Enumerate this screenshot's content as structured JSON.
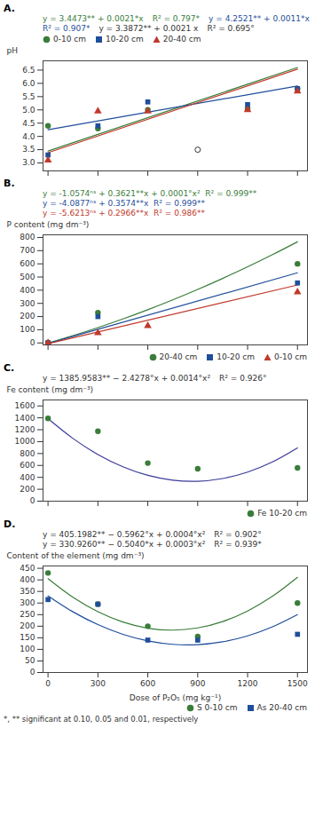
{
  "chart_data": [
    {
      "type": "scatter",
      "title": "A.",
      "ylabel": "pH",
      "xlim": [
        -30,
        1560
      ],
      "xticks": [
        0,
        300,
        600,
        900,
        1200,
        1500
      ],
      "ylim": [
        2.7,
        6.85
      ],
      "yticks": [
        {
          "value": 3,
          "label": "3.0"
        },
        3.5,
        {
          "value": 4,
          "label": "4.0"
        },
        4.5,
        {
          "value": 5,
          "label": "5.0"
        },
        5.5,
        {
          "value": 6,
          "label": "6.0"
        },
        6.5
      ],
      "tick_labels": "y",
      "legend": "upper left",
      "series": [
        {
          "name": "0-10 cm",
          "color": "#3a7d3a",
          "marker": "o",
          "x": [
            0,
            300,
            600,
            1200,
            1500
          ],
          "values": [
            4.4,
            4.3,
            5.0,
            5.05,
            5.8
          ],
          "fit": {
            "x": [
              0,
              1500
            ],
            "values": [
              3.4473,
              6.5973
            ]
          }
        },
        {
          "name": "10-20 cm",
          "color": "#1f4e9a",
          "marker": "s",
          "x": [
            0,
            300,
            600,
            1200,
            1500
          ],
          "values": [
            3.3,
            4.4,
            5.3,
            5.2,
            5.8
          ],
          "fit": {
            "x": [
              0,
              1500
            ],
            "values": [
              4.2521,
              5.9021
            ]
          }
        },
        {
          "name": "20-40 cm",
          "color": "#c0392b",
          "marker": "^",
          "x": [
            0,
            300,
            600,
            1200,
            1500
          ],
          "values": [
            3.1,
            4.95,
            4.95,
            5.0,
            5.7
          ],
          "fit": {
            "x": [
              0,
              1500
            ],
            "values": [
              3.3872,
              6.5372
            ]
          }
        }
      ],
      "outliers": {
        "x": [
          900
        ],
        "values": [
          3.5
        ]
      },
      "annotations": [
        {
          "text": "y = 3.4473** + 0.0021*x",
          "color": "#3a7d3a"
        },
        {
          "text": "R² = 0.797*",
          "color": "#3a7d3a"
        },
        {
          "text": "y = 4.2521** + 0.0011*x",
          "color": "#1f4e9a"
        },
        {
          "text": "R² = 0.907*",
          "color": "#1f4e9a"
        },
        {
          "text": "y = 3.3872** + 0.0021 x"
        },
        {
          "text": "R² = 0.695°"
        }
      ]
    },
    {
      "type": "scatter",
      "title": "B.",
      "ylabel": "P content (mg dm⁻³)",
      "xlim": [
        -30,
        1560
      ],
      "xticks": [
        0,
        300,
        600,
        900,
        1200,
        1500
      ],
      "ylim": [
        -15,
        820
      ],
      "yticks": [
        0,
        100,
        200,
        300,
        400,
        500,
        600,
        700,
        800
      ],
      "tick_labels": "y",
      "legend": "lower right",
      "series": [
        {
          "name": "20-40 cm",
          "color": "#3a7d3a",
          "marker": "o",
          "x": [
            0,
            300,
            1500
          ],
          "values": [
            2,
            230,
            600
          ],
          "fit": {
            "x": [
              0,
              150,
              300,
              450,
              600,
              750,
              900,
              1050,
              1200,
              1350,
              1500
            ],
            "values": [
              -1.0574,
              55.5076,
              116.5726,
              182.1376,
              252.2026,
              326.7676,
              405.8326,
              489.3976,
              577.4626,
              670.0276,
              767.0926
            ]
          }
        },
        {
          "name": "10-20 cm",
          "color": "#1f4e9a",
          "marker": "s",
          "x": [
            0,
            300,
            1500
          ],
          "values": [
            1,
            200,
            455
          ],
          "fit": {
            "x": [
              0,
              1500
            ],
            "values": [
              -4.0877,
              532.0123
            ]
          }
        },
        {
          "name": "0-10 cm",
          "color": "#c0392b",
          "marker": "^",
          "x": [
            0,
            300,
            600,
            1500
          ],
          "values": [
            0,
            75,
            130,
            385
          ],
          "fit": {
            "x": [
              0,
              1500
            ],
            "values": [
              -5.6213,
              439.2787
            ]
          }
        }
      ],
      "annotations": [
        {
          "text": "y = -1.0574ⁿˢ + 0.3621**x + 0.0001°x²  R² = 0.999**",
          "color": "#3a7d3a"
        },
        {
          "text": "y = -4.0877ⁿˢ + 0.3574**x  R² = 0.999**",
          "color": "#1f4e9a"
        },
        {
          "text": "y = -5.6213ⁿˢ + 0.2966**x  R² = 0.986**",
          "color": "#c0392b"
        }
      ]
    },
    {
      "type": "scatter",
      "title": "C.",
      "ylabel": "Fe content (mg dm⁻³)",
      "xlim": [
        -30,
        1560
      ],
      "xticks": [
        0,
        300,
        600,
        900,
        1200,
        1500
      ],
      "ylim": [
        0,
        1700
      ],
      "yticks": [
        0,
        200,
        400,
        600,
        800,
        1000,
        1200,
        1400,
        1600
      ],
      "tick_labels": "y",
      "legend": "lower right",
      "series": [
        {
          "name": "Fe 10-20 cm",
          "color": "#3a7d3a",
          "marker": "o",
          "x": [
            0,
            300,
            600,
            900,
            1500
          ],
          "values": [
            1390,
            1175,
            640,
            545,
            560
          ],
          "fit": {
            "color": "#3a3a9a",
            "x": [
              0,
              150,
              300,
              450,
              600,
              750,
              900,
              1050,
              1200,
              1350,
              1500
            ],
            "values": [
              1385.9583,
              1053.2883,
              783.6183,
              576.9483,
              433.2783,
              352.6083,
              334.9383,
              380.2683,
              488.5983,
              659.9283,
              894.2583
            ]
          }
        }
      ],
      "annotations": [
        {
          "text": "y = 1385.9583** − 2.4278°x + 0.0014°x²"
        },
        {
          "text": "R² = 0.926°"
        }
      ]
    },
    {
      "type": "scatter",
      "title": "D.",
      "ylabel": "Content of the element (mg dm⁻³)",
      "xlabel": "Dose of P₂O₅ (mg kg⁻¹)",
      "xlim": [
        -30,
        1560
      ],
      "xticks": [
        0,
        300,
        600,
        900,
        1200,
        1500
      ],
      "ylim": [
        0,
        460
      ],
      "yticks": [
        0,
        50,
        100,
        150,
        200,
        250,
        300,
        350,
        400,
        450
      ],
      "legend": "lower right",
      "series": [
        {
          "name": "S 0-10 cm",
          "color": "#3a7d3a",
          "marker": "o",
          "x": [
            0,
            300,
            600,
            900,
            1500
          ],
          "values": [
            430,
            295,
            200,
            155,
            300
          ],
          "fit": {
            "x": [
              0,
              150,
              300,
              450,
              600,
              750,
              900,
              1050,
              1200,
              1350,
              1500
            ],
            "values": [
              405.1982,
              324.7682,
              262.3382,
              217.9082,
              191.4782,
              183.0482,
              192.6182,
              220.1882,
              265.7582,
              329.3282,
              410.8982
            ]
          }
        },
        {
          "name": "As 20-40 cm",
          "color": "#1f4e9a",
          "marker": "s",
          "x": [
            0,
            300,
            600,
            900,
            1500
          ],
          "values": [
            315,
            295,
            140,
            140,
            165
          ],
          "fit": {
            "x": [
              0,
              150,
              300,
              450,
              600,
              750,
              900,
              1050,
              1200,
              1350,
              1500
            ],
            "values": [
              330.926,
              262.076,
              206.726,
              164.876,
              136.526,
              121.676,
              120.326,
              132.476,
              158.126,
              197.276,
              249.926
            ]
          }
        }
      ],
      "annotations": [
        {
          "text": "y = 405.1982** − 0.5962°x + 0.0004°x²"
        },
        {
          "text": "R² = 0.902°"
        },
        {
          "text": "y = 330.9260** − 0.5040*x + 0.0003°x²"
        },
        {
          "text": "R² = 0.939*"
        }
      ]
    }
  ],
  "caption": "*, ** significant at 0.10, 0.05 and 0.01, respectively"
}
